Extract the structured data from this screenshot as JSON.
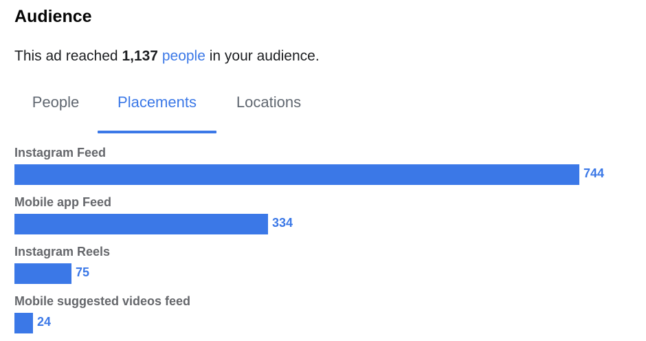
{
  "header": {
    "title": "Audience"
  },
  "summary": {
    "prefix": "This ad reached ",
    "count": "1,137",
    "link_text": "people",
    "suffix": " in your audience."
  },
  "tabs": [
    {
      "label": "People",
      "active": false
    },
    {
      "label": "Placements",
      "active": true
    },
    {
      "label": "Locations",
      "active": false
    }
  ],
  "colors": {
    "accent": "#3b78e7",
    "muted_text": "#65676b"
  },
  "chart_data": {
    "type": "bar",
    "orientation": "horizontal",
    "categories": [
      "Instagram Feed",
      "Mobile app Feed",
      "Instagram Reels",
      "Mobile suggested videos feed"
    ],
    "values": [
      744,
      334,
      75,
      24
    ],
    "xlim": [
      0,
      744
    ],
    "grid": false
  }
}
